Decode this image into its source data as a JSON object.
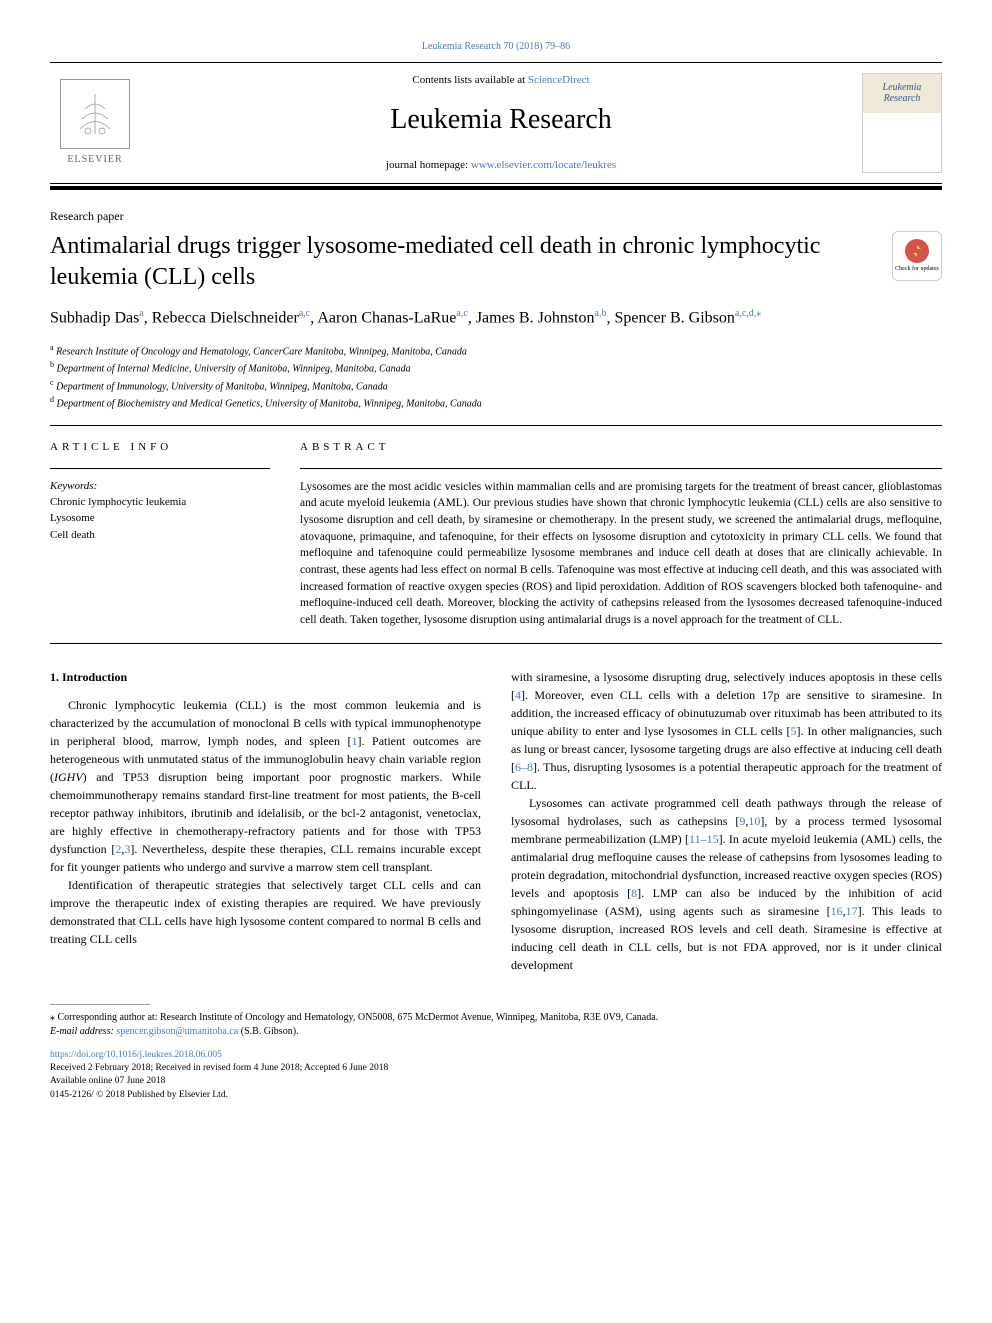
{
  "header": {
    "citation": "Leukemia Research 70 (2018) 79–86",
    "contents_prefix": "Contents lists available at ",
    "contents_link": "ScienceDirect",
    "journal_name": "Leukemia Research",
    "homepage_prefix": "journal homepage: ",
    "homepage_url": "www.elsevier.com/locate/leukres",
    "elsevier_label": "ELSEVIER",
    "cover_title": "Leukemia Research",
    "check_updates": "Check for updates"
  },
  "paper": {
    "type": "Research paper",
    "title": "Antimalarial drugs trigger lysosome-mediated cell death in chronic lymphocytic leukemia (CLL) cells",
    "authors_html": "Subhadip Das<sup><a>a</a></sup>, Rebecca Dielschneider<sup><a>a</a>,<a>c</a></sup>, Aaron Chanas-LaRue<sup><a>a</a>,<a>c</a></sup>, James B. Johnston<sup><a>a</a>,<a>b</a></sup>, Spencer B. Gibson<sup><a>a</a>,<a>c</a>,<a>d</a>,<a>⁎</a></sup>",
    "affiliations": [
      {
        "sup": "a",
        "text": "Research Institute of Oncology and Hematology, CancerCare Manitoba, Winnipeg, Manitoba, Canada"
      },
      {
        "sup": "b",
        "text": "Department of Internal Medicine, University of Manitoba, Winnipeg, Manitoba, Canada"
      },
      {
        "sup": "c",
        "text": "Department of Immunology, University of Manitoba, Winnipeg, Manitoba, Canada"
      },
      {
        "sup": "d",
        "text": "Department of Biochemistry and Medical Genetics, University of Manitoba, Winnipeg, Manitoba, Canada"
      }
    ]
  },
  "info": {
    "header": "ARTICLE INFO",
    "keywords_label": "Keywords:",
    "keywords": [
      "Chronic lymphocytic leukemia",
      "Lysosome",
      "Cell death"
    ]
  },
  "abstract": {
    "header": "ABSTRACT",
    "text": "Lysosomes are the most acidic vesicles within mammalian cells and are promising targets for the treatment of breast cancer, glioblastomas and acute myeloid leukemia (AML). Our previous studies have shown that chronic lymphocytic leukemia (CLL) cells are also sensitive to lysosome disruption and cell death, by siramesine or chemotherapy. In the present study, we screened the antimalarial drugs, mefloquine, atovaquone, primaquine, and tafenoquine, for their effects on lysosome disruption and cytotoxicity in primary CLL cells. We found that mefloquine and tafenoquine could permeabilize lysosome membranes and induce cell death at doses that are clinically achievable. In contrast, these agents had less effect on normal B cells. Tafenoquine was most effective at inducing cell death, and this was associated with increased formation of reactive oxygen species (ROS) and lipid peroxidation. Addition of ROS scavengers blocked both tafenoquine- and mefloquine-induced cell death. Moreover, blocking the activity of cathepsins released from the lysosomes decreased tafenoquine-induced cell death. Taken together, lysosome disruption using antimalarial drugs is a novel approach for the treatment of CLL."
  },
  "body": {
    "intro_heading": "1. Introduction",
    "para1": "Chronic lymphocytic leukemia (CLL) is the most common leukemia and is characterized by the accumulation of monoclonal B cells with typical immunophenotype in peripheral blood, marrow, lymph nodes, and spleen [<a>1</a>]. Patient outcomes are heterogeneous with unmutated status of the immunoglobulin heavy chain variable region (<i>IGHV</i>) and TP53 disruption being important poor prognostic markers. While chemoimmunotherapy remains standard first-line treatment for most patients, the B-cell receptor pathway inhibitors, ibrutinib and idelalisib, or the bcl-2 antagonist, venetoclax, are highly effective in chemotherapy-refractory patients and for those with TP53 dysfunction [<a>2</a>,<a>3</a>]. Nevertheless, despite these therapies, CLL remains incurable except for fit younger patients who undergo and survive a marrow stem cell transplant.",
    "para2": "Identification of therapeutic strategies that selectively target CLL cells and can improve the therapeutic index of existing therapies are required. We have previously demonstrated that CLL cells have high lysosome content compared to normal B cells and treating CLL cells",
    "para3": "with siramesine, a lysosome disrupting drug, selectively induces apoptosis in these cells [<a>4</a>]. Moreover, even CLL cells with a deletion 17p are sensitive to siramesine. In addition, the increased efficacy of obinutuzumab over rituximab has been attributed to its unique ability to enter and lyse lysosomes in CLL cells [<a>5</a>]. In other malignancies, such as lung or breast cancer, lysosome targeting drugs are also effective at inducing cell death [<a>6–8</a>]. Thus, disrupting lysosomes is a potential therapeutic approach for the treatment of CLL.",
    "para4": "Lysosomes can activate programmed cell death pathways through the release of lysosomal hydrolases, such as cathepsins [<a>9</a>,<a>10</a>], by a process termed lysosomal membrane permeabilization (LMP) [<a>11–15</a>]. In acute myeloid leukemia (AML) cells, the antimalarial drug mefloquine causes the release of cathepsins from lysosomes leading to protein degradation, mitochondrial dysfunction, increased reactive oxygen species (ROS) levels and apoptosis [<a>8</a>]. LMP can also be induced by the inhibition of acid sphingomyelinase (ASM), using agents such as siramesine [<a>16</a>,<a>17</a>]. This leads to lysosome disruption, increased ROS levels and cell death. Siramesine is effective at inducing cell death in CLL cells, but is not FDA approved, nor is it under clinical development"
  },
  "footnote": {
    "corr": "⁎ Corresponding author at: Research Institute of Oncology and Hematology, ON5008, 675 McDermot Avenue, Winnipeg, Manitoba, R3E 0V9, Canada.",
    "email_label": "E-mail address: ",
    "email": "spencer.gibson@umanitoba.ca",
    "email_name": " (S.B. Gibson)."
  },
  "doi": {
    "url": "https://doi.org/10.1016/j.leukres.2018.06.005",
    "received": "Received 2 February 2018; Received in revised form 4 June 2018; Accepted 6 June 2018",
    "available": "Available online 07 June 2018",
    "copyright": "0145-2126/ © 2018 Published by Elsevier Ltd."
  },
  "colors": {
    "link": "#4a7ab8",
    "text": "#000000",
    "background": "#ffffff"
  }
}
